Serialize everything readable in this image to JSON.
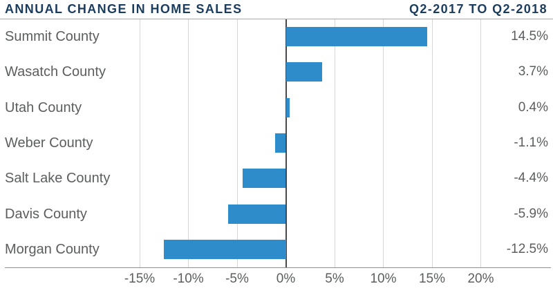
{
  "header": {
    "title": "ANNUAL CHANGE IN HOME SALES",
    "period": "Q2-2017 TO Q2-2018"
  },
  "chart_data": {
    "type": "bar",
    "orientation": "horizontal",
    "title": "ANNUAL CHANGE IN HOME SALES",
    "subtitle": "Q2-2017 TO Q2-2018",
    "unit": "%",
    "categories": [
      "Summit County",
      "Wasatch County",
      "Utah County",
      "Weber County",
      "Salt Lake County",
      "Davis County",
      "Morgan County"
    ],
    "values": [
      14.5,
      3.7,
      0.4,
      -1.1,
      -4.4,
      -5.9,
      -12.5
    ],
    "value_labels": [
      "14.5%",
      "3.7%",
      "0.4%",
      "-1.1%",
      "-4.4%",
      "-5.9%",
      "-12.5%"
    ],
    "x_ticks": [
      {
        "value": -15,
        "label": "-15%"
      },
      {
        "value": -10,
        "label": "-10%"
      },
      {
        "value": -5,
        "label": "-5%"
      },
      {
        "value": 0,
        "label": "0%"
      },
      {
        "value": 5,
        "label": "5%"
      },
      {
        "value": 10,
        "label": "10%"
      },
      {
        "value": 15,
        "label": "15%"
      },
      {
        "value": 20,
        "label": "20%"
      }
    ],
    "axis_range": [
      -15,
      20
    ],
    "grid": true,
    "legend": "none",
    "colors": {
      "bar": "#2f8ccb",
      "navy": "#1a3c5e",
      "gray": "#5c5d5f",
      "grid": "#d6d6d8",
      "zero": "#48484a",
      "rule": "#a8a8aa",
      "axis": "#8f8f91"
    }
  }
}
